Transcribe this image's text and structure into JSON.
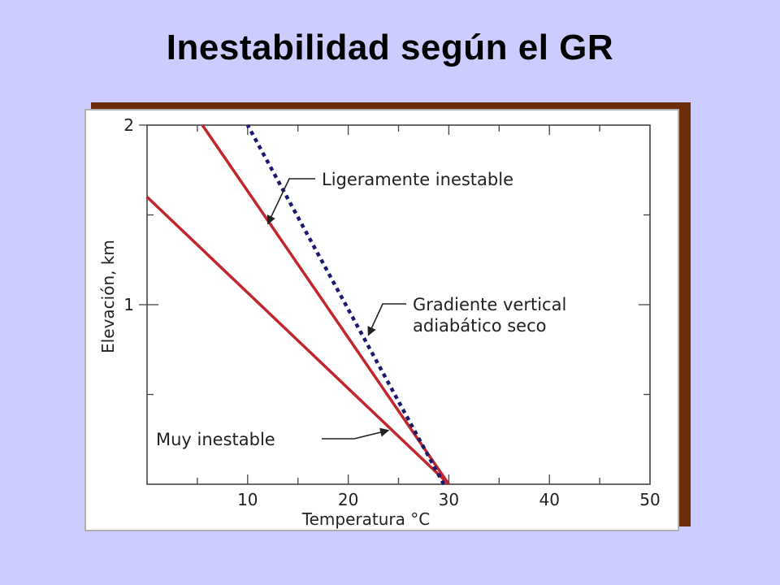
{
  "slide": {
    "title": "Inestabilidad según el GR",
    "background": "#ccccff",
    "frame_shadow_color": "#6b2d0a"
  },
  "chart_data": {
    "type": "line",
    "title": "",
    "xlabel": "Temperatura °C",
    "ylabel": "Elevación, km",
    "xlim": [
      0,
      50
    ],
    "ylim": [
      0,
      2
    ],
    "x_ticks": [
      10,
      20,
      30,
      40,
      50
    ],
    "x_tick_labels": [
      "10",
      "20",
      "30",
      "40",
      "50"
    ],
    "y_ticks": [
      1,
      2
    ],
    "y_tick_labels": [
      "1",
      "2"
    ],
    "grid": false,
    "series": [
      {
        "color": "#c0262c",
        "style": "solid",
        "x": [
          30,
          0
        ],
        "y": [
          0,
          1.6
        ]
      },
      {
        "color": "#c0262c",
        "style": "solid",
        "x": [
          30,
          5.5
        ],
        "y": [
          0,
          2
        ]
      },
      {
        "color": "#1a1a6e",
        "style": "dotted",
        "x": [
          29.5,
          10
        ],
        "y": [
          0,
          2
        ]
      }
    ],
    "annotations": [
      {
        "text_lines": [
          "Ligeramente inestable"
        ],
        "arrow_to": [
          12,
          1.45
        ]
      },
      {
        "text_lines": [
          "Gradiente vertical",
          "adiabático seco"
        ],
        "arrow_to": [
          22,
          0.83
        ]
      },
      {
        "text_lines": [
          "Muy inestable"
        ],
        "arrow_to": [
          24,
          0.3
        ]
      }
    ]
  }
}
